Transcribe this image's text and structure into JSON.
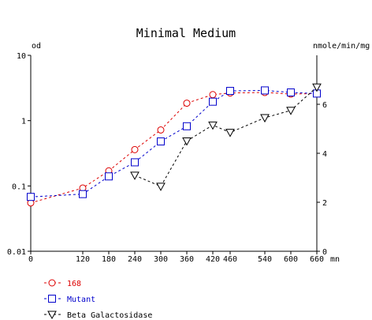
{
  "chart_data": {
    "type": "line",
    "title": "Minimal Medium",
    "left_axis": {
      "label": "od",
      "scale": "log",
      "range": [
        0.01,
        10
      ],
      "ticks": [
        {
          "v": 10,
          "label": "10"
        },
        {
          "v": 1,
          "label": "1"
        },
        {
          "v": 0.1,
          "label": "0.1"
        },
        {
          "v": 0.01,
          "label": "0.01"
        }
      ]
    },
    "right_axis": {
      "label": "nmole/min/mg",
      "scale": "linear",
      "range": [
        0,
        8
      ],
      "ticks": [
        {
          "v": 0,
          "label": "0"
        },
        {
          "v": 2,
          "label": "2"
        },
        {
          "v": 4,
          "label": "4"
        },
        {
          "v": 6,
          "label": "6"
        }
      ]
    },
    "x_axis": {
      "unit": "mn",
      "range": [
        0,
        660
      ],
      "ticks": [
        0,
        120,
        180,
        240,
        300,
        360,
        420,
        460,
        540,
        600,
        660
      ]
    },
    "grid": false,
    "legend_placement": "bottom-left",
    "series": [
      {
        "name": "168",
        "axis": "left",
        "color": "#dd0000",
        "marker": "circle",
        "x": [
          0,
          120,
          180,
          240,
          300,
          360,
          420,
          460,
          540,
          600,
          660
        ],
        "y": [
          0.055,
          0.093,
          0.17,
          0.36,
          0.72,
          1.85,
          2.5,
          2.65,
          2.7,
          2.55,
          2.6
        ]
      },
      {
        "name": "Mutant",
        "axis": "left",
        "color": "#0000cc",
        "marker": "square",
        "x": [
          0,
          120,
          180,
          240,
          300,
          360,
          420,
          460,
          540,
          600,
          660
        ],
        "y": [
          0.068,
          0.075,
          0.14,
          0.23,
          0.48,
          0.82,
          1.95,
          2.85,
          2.9,
          2.7,
          2.6
        ]
      },
      {
        "name": "Beta Galactosidase",
        "axis": "right",
        "color": "#000000",
        "marker": "triangle-down",
        "x": [
          240,
          300,
          360,
          420,
          460,
          540,
          600,
          660
        ],
        "y": [
          3.1,
          2.65,
          4.5,
          5.15,
          4.85,
          5.45,
          5.75,
          6.7
        ]
      }
    ]
  }
}
